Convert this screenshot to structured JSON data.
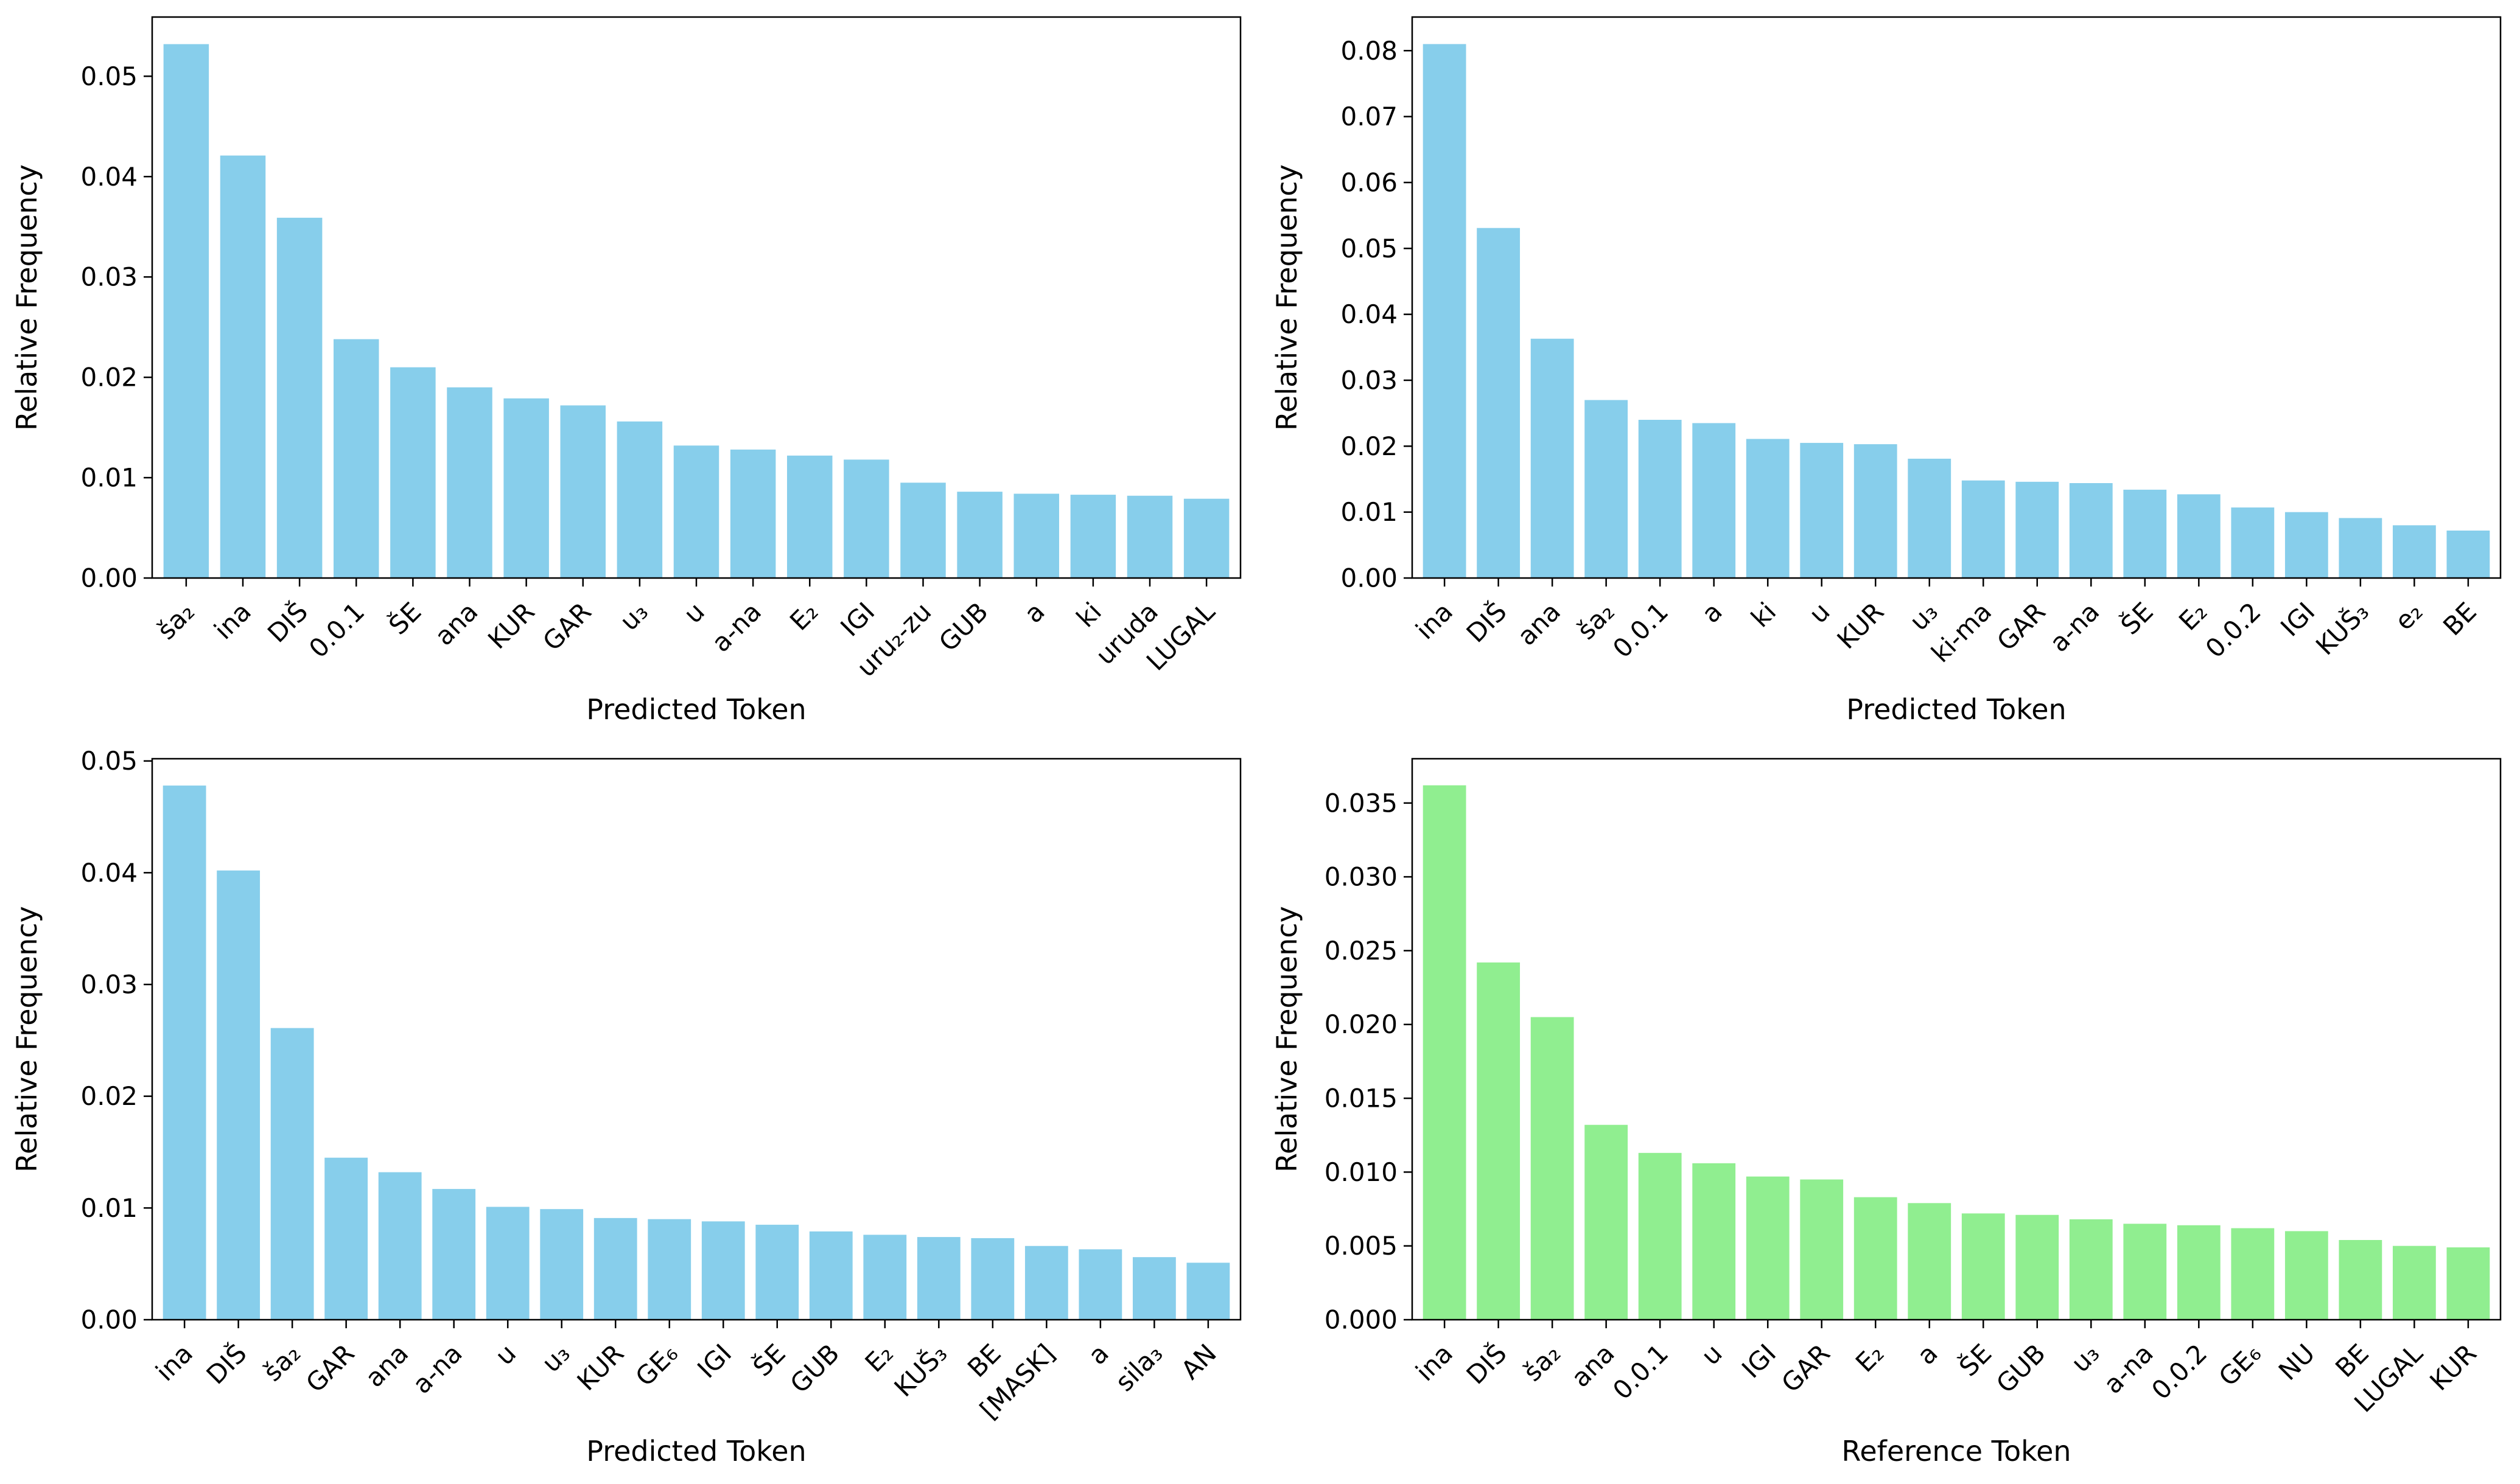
{
  "figure": {
    "background": "#ffffff",
    "layout": "2x2 grid of bar charts"
  },
  "chart_data": [
    {
      "position": "top-left",
      "type": "bar",
      "title": "",
      "xlabel": "Predicted Token",
      "ylabel": "Relative Frequency",
      "bar_color": "#87CEEB",
      "grid": false,
      "legend": null,
      "ylim": [
        0,
        0.0559
      ],
      "yticks": [
        0,
        0.01,
        0.02,
        0.03,
        0.04,
        0.05
      ],
      "ytick_labels": [
        "0.00",
        "0.01",
        "0.02",
        "0.03",
        "0.04",
        "0.05"
      ],
      "categories": [
        "ša₂",
        "ina",
        "DIŠ",
        "0.0.1",
        "ŠE",
        "ana",
        "KUR",
        "GAR",
        "u₃",
        "u",
        "a-na",
        "E₂",
        "IGI",
        "uru₂-zu",
        "GUB",
        "a",
        "ki",
        "uruda",
        "LUGAL"
      ],
      "values": [
        0.0532,
        0.0421,
        0.0359,
        0.0238,
        0.021,
        0.019,
        0.0179,
        0.0172,
        0.0156,
        0.0132,
        0.0128,
        0.0122,
        0.0118,
        0.0095,
        0.0086,
        0.0084,
        0.0083,
        0.0082,
        0.0079
      ]
    },
    {
      "position": "top-right",
      "type": "bar",
      "title": "",
      "xlabel": "Predicted Token",
      "ylabel": "Relative Frequency",
      "bar_color": "#87CEEB",
      "grid": false,
      "legend": null,
      "ylim": [
        0,
        0.0851
      ],
      "yticks": [
        0,
        0.01,
        0.02,
        0.03,
        0.04,
        0.05,
        0.06,
        0.07,
        0.08
      ],
      "ytick_labels": [
        "0.00",
        "0.01",
        "0.02",
        "0.03",
        "0.04",
        "0.05",
        "0.06",
        "0.07",
        "0.08"
      ],
      "categories": [
        "ina",
        "DIŠ",
        "ana",
        "ša₂",
        "0.0.1",
        "a",
        "ki",
        "u",
        "KUR",
        "u₃",
        "ki-ma",
        "GAR",
        "a-na",
        "ŠE",
        "E₂",
        "0.0.2",
        "IGI",
        "KUŠ₃",
        "e₂",
        "BE"
      ],
      "values": [
        0.081,
        0.0531,
        0.0363,
        0.027,
        0.024,
        0.0235,
        0.0211,
        0.0205,
        0.0203,
        0.0181,
        0.0148,
        0.0146,
        0.0144,
        0.0134,
        0.0127,
        0.0107,
        0.01,
        0.0091,
        0.008,
        0.0072
      ]
    },
    {
      "position": "bottom-left",
      "type": "bar",
      "title": "",
      "xlabel": "Predicted Token",
      "ylabel": "Relative Frequency",
      "bar_color": "#87CEEB",
      "grid": false,
      "legend": null,
      "ylim": [
        0,
        0.0502
      ],
      "yticks": [
        0,
        0.01,
        0.02,
        0.03,
        0.04,
        0.05
      ],
      "ytick_labels": [
        "0.00",
        "0.01",
        "0.02",
        "0.03",
        "0.04",
        "0.05"
      ],
      "categories": [
        "ina",
        "DIŠ",
        "ša₂",
        "GAR",
        "ana",
        "a-na",
        "u",
        "u₃",
        "KUR",
        "GE₆",
        "IGI",
        "ŠE",
        "GUB",
        "E₂",
        "KUŠ₃",
        "BE",
        "[MASK]",
        "a",
        "sila₃",
        "AN"
      ],
      "values": [
        0.0478,
        0.0402,
        0.0261,
        0.0145,
        0.0132,
        0.0117,
        0.0101,
        0.0099,
        0.0091,
        0.009,
        0.0088,
        0.0085,
        0.0079,
        0.0076,
        0.0074,
        0.0073,
        0.0066,
        0.0063,
        0.0056,
        0.0051
      ]
    },
    {
      "position": "bottom-right",
      "type": "bar",
      "title": "",
      "xlabel": "Reference Token",
      "ylabel": "Relative Frequency",
      "bar_color": "#90EE90",
      "grid": false,
      "legend": null,
      "ylim": [
        0,
        0.038
      ],
      "yticks": [
        0,
        0.005,
        0.01,
        0.015,
        0.02,
        0.025,
        0.03,
        0.035
      ],
      "ytick_labels": [
        "0.000",
        "0.005",
        "0.010",
        "0.015",
        "0.020",
        "0.025",
        "0.030",
        "0.035"
      ],
      "categories": [
        "ina",
        "DIŠ",
        "ša₂",
        "ana",
        "0.0.1",
        "u",
        "IGI",
        "GAR",
        "E₂",
        "a",
        "ŠE",
        "GUB",
        "u₃",
        "a-na",
        "0.0.2",
        "GE₆",
        "NU",
        "BE",
        "LUGAL",
        "KUR"
      ],
      "values": [
        0.0362,
        0.0242,
        0.0205,
        0.0132,
        0.0113,
        0.0106,
        0.0097,
        0.0095,
        0.0083,
        0.0079,
        0.0072,
        0.0071,
        0.0068,
        0.0065,
        0.0064,
        0.0062,
        0.006,
        0.0054,
        0.005,
        0.0049
      ]
    }
  ]
}
